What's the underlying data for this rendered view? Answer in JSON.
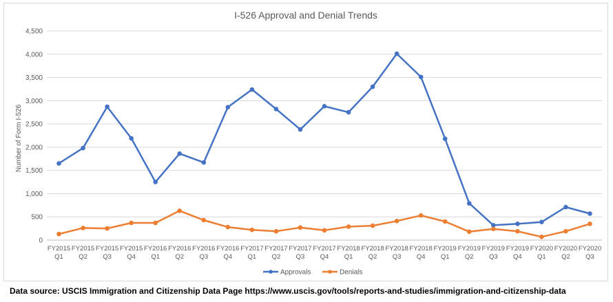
{
  "chart_data": {
    "type": "line",
    "title": "I-526 Approval and Denial Trends",
    "xlabel": "",
    "ylabel": "Number of Form I-526",
    "ylim": [
      0,
      4500
    ],
    "yticks": [
      0,
      500,
      1000,
      1500,
      2000,
      2500,
      3000,
      3500,
      4000,
      4500
    ],
    "ytick_labels": [
      "0",
      "500",
      "1,000",
      "1,500",
      "2,000",
      "2,500",
      "3,000",
      "3,500",
      "4,000",
      "4,500"
    ],
    "grid": true,
    "legend_position": "bottom-center",
    "categories": [
      {
        "fy": "FY2015",
        "q": "Q1"
      },
      {
        "fy": "FY2015",
        "q": "Q2"
      },
      {
        "fy": "FY2015",
        "q": "Q3"
      },
      {
        "fy": "FY2015",
        "q": "Q4"
      },
      {
        "fy": "FY2016",
        "q": "Q1"
      },
      {
        "fy": "FY2016",
        "q": "Q2"
      },
      {
        "fy": "FY2016",
        "q": "Q3"
      },
      {
        "fy": "FY2016",
        "q": "Q4"
      },
      {
        "fy": "FY2017",
        "q": "Q1"
      },
      {
        "fy": "FY2017",
        "q": "Q2"
      },
      {
        "fy": "FY2017",
        "q": "Q3"
      },
      {
        "fy": "FY2017",
        "q": "Q4"
      },
      {
        "fy": "FY2018",
        "q": "Q1"
      },
      {
        "fy": "FY2018",
        "q": "Q2"
      },
      {
        "fy": "FY2018",
        "q": "Q3"
      },
      {
        "fy": "FY2018",
        "q": "Q4"
      },
      {
        "fy": "FY2019",
        "q": "Q1"
      },
      {
        "fy": "FY2019",
        "q": "Q2"
      },
      {
        "fy": "FY2019",
        "q": "Q3"
      },
      {
        "fy": "FY2019",
        "q": "Q4"
      },
      {
        "fy": "FY2020",
        "q": "Q1"
      },
      {
        "fy": "FY2020",
        "q": "Q2"
      },
      {
        "fy": "FY2020",
        "q": "Q3"
      }
    ],
    "series": [
      {
        "name": "Approvals",
        "color": "#4472c4",
        "values": [
          1650,
          1980,
          2870,
          2190,
          1250,
          1860,
          1670,
          2860,
          3240,
          2820,
          2380,
          2880,
          2750,
          3300,
          4010,
          3510,
          2180,
          790,
          320,
          350,
          390,
          710,
          570
        ]
      },
      {
        "name": "Denials",
        "color": "#ed7d31",
        "values": [
          130,
          260,
          250,
          370,
          370,
          630,
          430,
          280,
          220,
          190,
          270,
          210,
          290,
          310,
          410,
          530,
          400,
          180,
          240,
          190,
          70,
          190,
          350
        ]
      }
    ]
  },
  "source_note": "Data source: USCIS Immigration and Citizenship Data Page https://www.uscis.gov/tools/reports-and-studies/immigration-and-citizenship-data"
}
